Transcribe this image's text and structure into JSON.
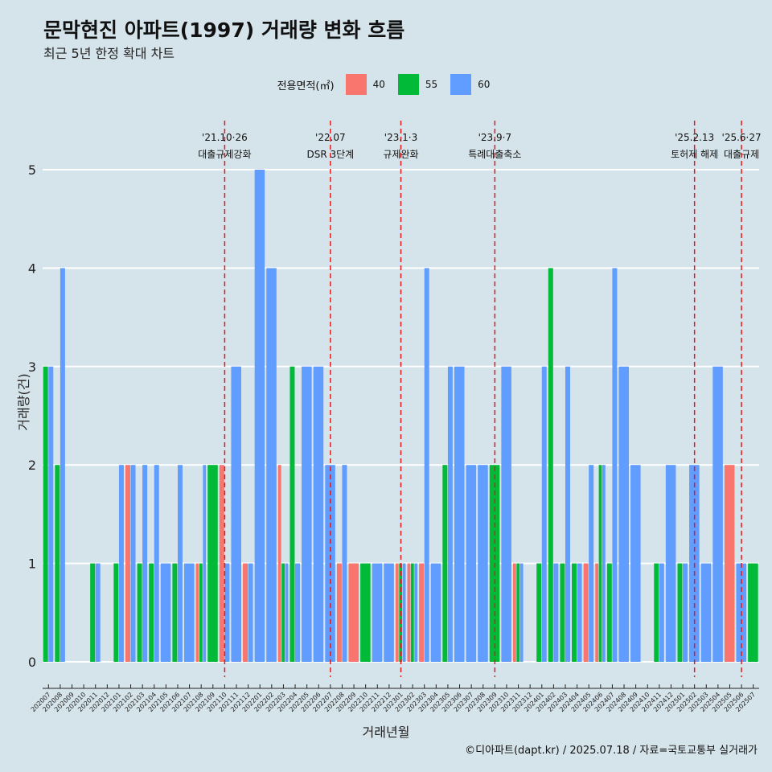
{
  "title": "문막현진 아파트(1997) 거래량 변화 흐름",
  "subtitle": "최근 5년 한정 확대 차트",
  "caption": "©디아파트(dapt.kr) / 2025.07.18 / 자료=국토교통부 실거래가",
  "colors": {
    "background": "#d5e3ea",
    "s40": "#f8766d",
    "s55": "#00ba38",
    "s60": "#619cff",
    "event_line": "#e31a1c",
    "grid": "#ffffff"
  },
  "chart_data": {
    "type": "bar",
    "xlabel": "거래년월",
    "ylabel": "거래량(건)",
    "ylim": [
      0,
      5
    ],
    "yticks": [
      0,
      1,
      2,
      3,
      4,
      5
    ],
    "legend": {
      "title": "전용면적(㎡)",
      "position": "top"
    },
    "categories": [
      "202007",
      "202008",
      "202009",
      "202010",
      "202011",
      "202012",
      "202101",
      "202102",
      "202103",
      "202104",
      "202105",
      "202106",
      "202107",
      "202108",
      "202109",
      "202110",
      "202111",
      "202112",
      "202201",
      "202202",
      "202203",
      "202204",
      "202205",
      "202206",
      "202207",
      "202208",
      "202209",
      "202210",
      "202211",
      "202212",
      "202301",
      "202302",
      "202303",
      "202304",
      "202305",
      "202306",
      "202307",
      "202308",
      "202309",
      "202310",
      "202311",
      "202312",
      "202401",
      "202402",
      "202403",
      "202404",
      "202405",
      "202406",
      "202407",
      "202408",
      "202409",
      "202410",
      "202411",
      "202412",
      "202501",
      "202502",
      "202503",
      "202504",
      "202505",
      "202506",
      "202507"
    ],
    "series": [
      {
        "name": "40",
        "values": [
          0,
          0,
          0,
          0,
          0,
          0,
          0,
          2,
          0,
          0,
          0,
          0,
          0,
          1,
          0,
          2,
          0,
          1,
          0,
          0,
          2,
          0,
          0,
          0,
          0,
          1,
          1,
          0,
          0,
          0,
          1,
          1,
          1,
          0,
          0,
          0,
          0,
          0,
          0,
          0,
          1,
          0,
          0,
          0,
          0,
          0,
          1,
          1,
          0,
          0,
          0,
          0,
          0,
          0,
          0,
          0,
          0,
          0,
          2,
          0,
          0
        ]
      },
      {
        "name": "55",
        "values": [
          3,
          2,
          0,
          0,
          1,
          0,
          1,
          0,
          1,
          1,
          0,
          1,
          0,
          1,
          2,
          0,
          0,
          0,
          0,
          0,
          1,
          3,
          0,
          0,
          0,
          0,
          0,
          1,
          0,
          0,
          1,
          1,
          0,
          0,
          2,
          0,
          0,
          0,
          2,
          0,
          1,
          0,
          1,
          4,
          1,
          1,
          0,
          2,
          1,
          0,
          0,
          0,
          1,
          0,
          1,
          0,
          0,
          0,
          0,
          0,
          1
        ]
      },
      {
        "name": "60",
        "values": [
          3,
          4,
          0,
          0,
          1,
          0,
          2,
          2,
          2,
          2,
          1,
          2,
          1,
          2,
          0,
          1,
          3,
          1,
          5,
          4,
          1,
          1,
          3,
          3,
          2,
          2,
          0,
          0,
          1,
          1,
          1,
          1,
          4,
          1,
          3,
          3,
          2,
          2,
          0,
          3,
          1,
          0,
          3,
          1,
          3,
          1,
          2,
          2,
          4,
          3,
          2,
          0,
          1,
          2,
          1,
          2,
          1,
          3,
          0,
          1,
          0
        ]
      }
    ],
    "events": [
      {
        "x": "202110",
        "date": "'21.10·26",
        "label": "대출규제강화"
      },
      {
        "x": "202207",
        "date": "'22.07",
        "label": "DSR 3단계"
      },
      {
        "x": "202301",
        "date": "'23.1·3",
        "label": "규제완화"
      },
      {
        "x": "202309",
        "date": "'23.9·7",
        "label": "특례대출축소"
      },
      {
        "x": "202502",
        "date": "'25.2.13",
        "label": "토허제 해제"
      },
      {
        "x": "202506",
        "date": "'25.6·27",
        "label": "대출규제"
      }
    ]
  }
}
